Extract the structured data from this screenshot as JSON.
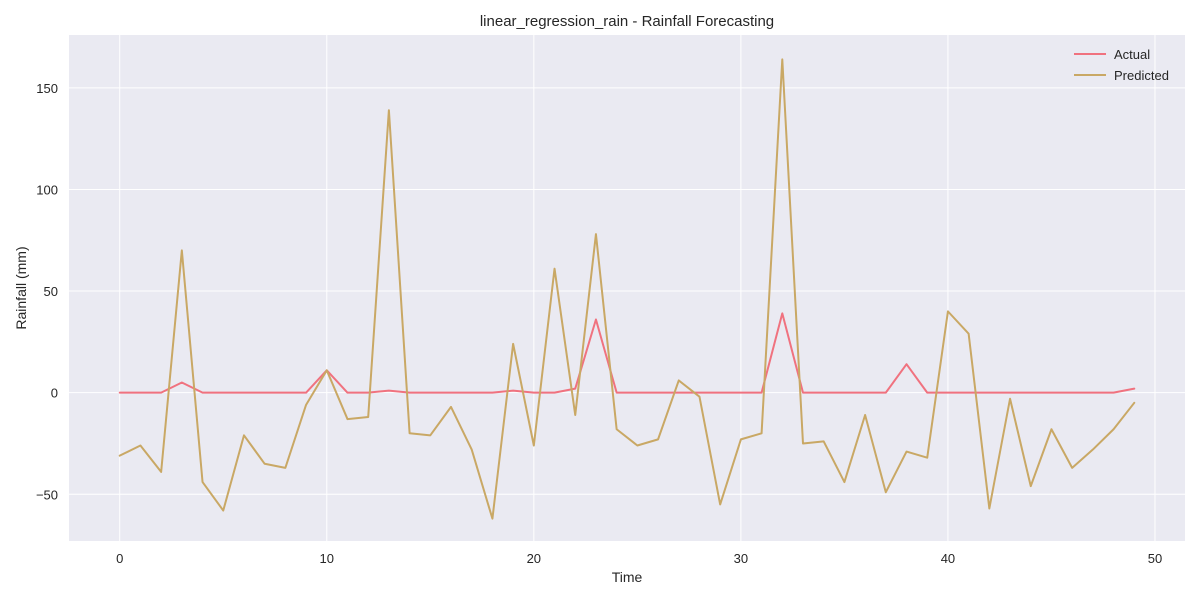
{
  "chart_data": {
    "type": "line",
    "title": "linear_regression_rain - Rainfall Forecasting",
    "xlabel": "Time",
    "ylabel": "Rainfall (mm)",
    "xlim": [
      -2.45,
      51.45
    ],
    "ylim": [
      -73,
      176
    ],
    "xticks": [
      0,
      10,
      20,
      30,
      40,
      50
    ],
    "yticks": [
      -50,
      0,
      50,
      100,
      150
    ],
    "grid": true,
    "legend_position": "top-right",
    "x": [
      0,
      1,
      2,
      3,
      4,
      5,
      6,
      7,
      8,
      9,
      10,
      11,
      12,
      13,
      14,
      15,
      16,
      17,
      18,
      19,
      20,
      21,
      22,
      23,
      24,
      25,
      26,
      27,
      28,
      29,
      30,
      31,
      32,
      33,
      34,
      35,
      36,
      37,
      38,
      39,
      40,
      41,
      42,
      43,
      44,
      45,
      46,
      47,
      48,
      49
    ],
    "series": [
      {
        "name": "Actual",
        "color": "#f0727f",
        "values": [
          0,
          0,
          0,
          5,
          0,
          0,
          0,
          0,
          0,
          0,
          11,
          0,
          0,
          1,
          0,
          0,
          0,
          0,
          0,
          1,
          0,
          0,
          2,
          36,
          0,
          0,
          0,
          0,
          0,
          0,
          0,
          0,
          39,
          0,
          0,
          0,
          0,
          0,
          14,
          0,
          0,
          0,
          0,
          0,
          0,
          0,
          0,
          0,
          0,
          2
        ]
      },
      {
        "name": "Predicted",
        "color": "#c9a865",
        "values": [
          -31,
          -26,
          -39,
          70,
          -44,
          -58,
          -21,
          -35,
          -37,
          -6,
          11,
          -13,
          -12,
          139,
          -20,
          -21,
          -7,
          -28,
          -62,
          24,
          -26,
          61,
          -11,
          78,
          -18,
          -26,
          -23,
          6,
          -2,
          -55,
          -23,
          -20,
          164,
          -25,
          -24,
          -44,
          -11,
          -49,
          -29,
          -32,
          40,
          29,
          -57,
          -3,
          -46,
          -18,
          -37,
          -28,
          -18,
          -5
        ]
      }
    ]
  }
}
